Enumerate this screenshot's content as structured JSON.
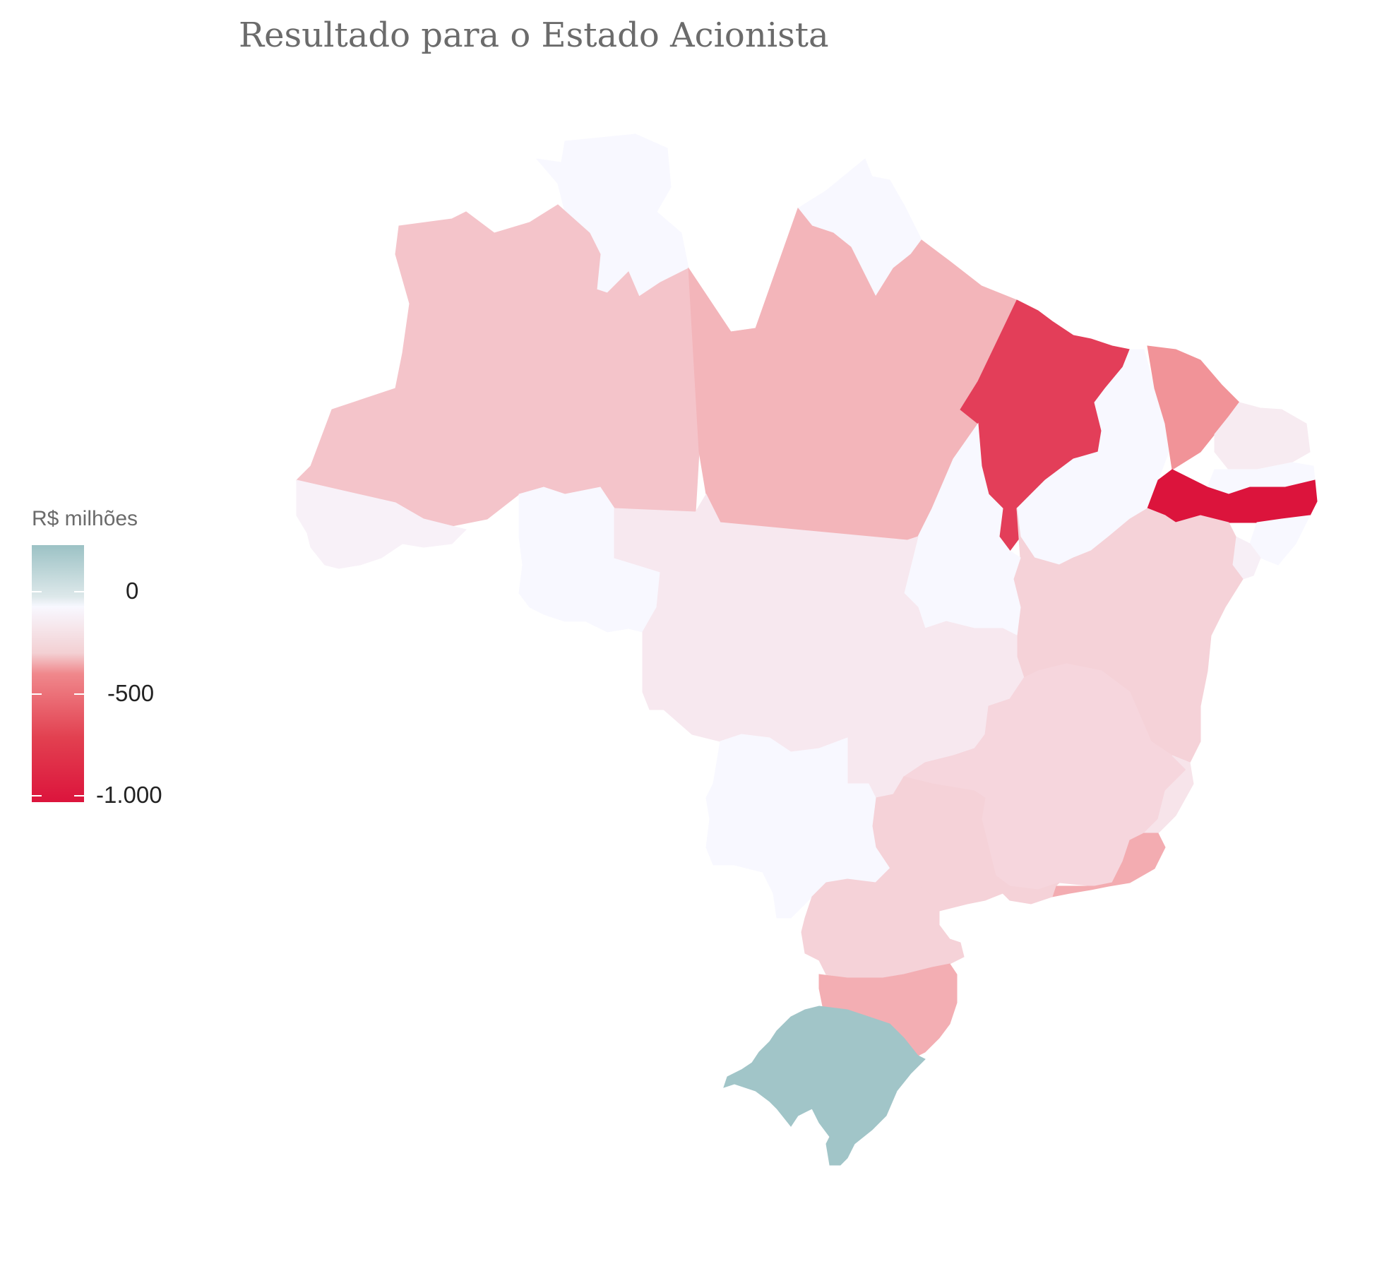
{
  "title": "Resultado para o Estado Acionista",
  "legend": {
    "title": "R$ milhões",
    "ticks": [
      {
        "label": "0",
        "value": 0
      },
      {
        "label": "-500",
        "value": -500
      },
      {
        "label": "-1.000",
        "value": -1000
      }
    ],
    "colors": {
      "positive": "#9cc2c5",
      "zero": "#f8f8ff",
      "negative": "#dc143c"
    }
  },
  "chart_data": {
    "type": "choropleth",
    "region": "Brasil",
    "legend_title": "R$ milhões",
    "colorscale_ticks": [
      0,
      -500,
      -1000
    ],
    "states": [
      {
        "uf": "RR",
        "value": 0
      },
      {
        "uf": "AP",
        "value": 0
      },
      {
        "uf": "AM",
        "value": -230
      },
      {
        "uf": "PA",
        "value": -300
      },
      {
        "uf": "MA",
        "value": -820
      },
      {
        "uf": "CE",
        "value": -450
      },
      {
        "uf": "RN",
        "value": -60
      },
      {
        "uf": "PI",
        "value": 0
      },
      {
        "uf": "PE",
        "value": -1000
      },
      {
        "uf": "PB",
        "value": 0
      },
      {
        "uf": "AL",
        "value": 0
      },
      {
        "uf": "SE",
        "value": -40
      },
      {
        "uf": "BA",
        "value": -170
      },
      {
        "uf": "TO",
        "value": 0
      },
      {
        "uf": "AC",
        "value": -30
      },
      {
        "uf": "RO",
        "value": 0
      },
      {
        "uf": "MT",
        "value": -70
      },
      {
        "uf": "GO",
        "value": -70
      },
      {
        "uf": "DF",
        "value": -70
      },
      {
        "uf": "MG",
        "value": -150
      },
      {
        "uf": "ES",
        "value": -90
      },
      {
        "uf": "RJ",
        "value": -340
      },
      {
        "uf": "SP",
        "value": -170
      },
      {
        "uf": "MS",
        "value": 0
      },
      {
        "uf": "PR",
        "value": -170
      },
      {
        "uf": "SC",
        "value": -330
      },
      {
        "uf": "RS",
        "value": 190
      }
    ]
  }
}
